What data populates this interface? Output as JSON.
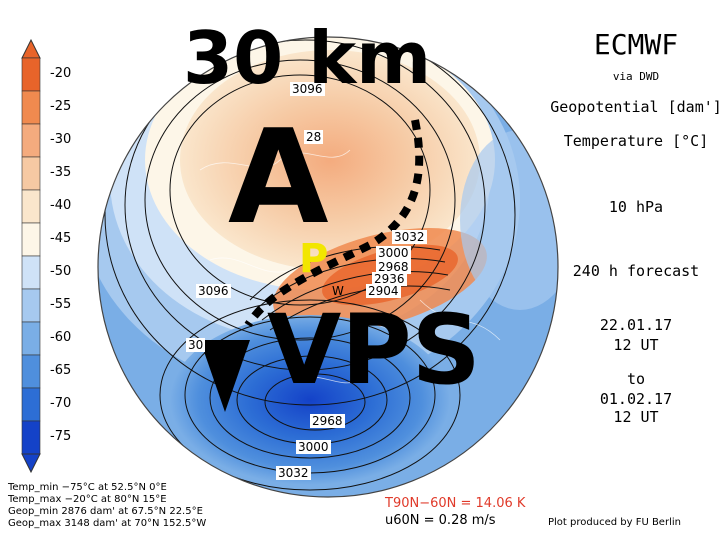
{
  "overlay": {
    "altitude": "30 km",
    "letter_a": "A",
    "letter_p": "P",
    "vps": "VPS"
  },
  "header": {
    "model": "ECMWF",
    "via": "via DWD",
    "field1": "Geopotential [dam']",
    "field2": "Temperature [°C]",
    "level": "10 hPa",
    "forecast": "240 h forecast",
    "init_date": "22.01.17",
    "init_time": "12 UT",
    "to": "to",
    "valid_date": "01.02.17",
    "valid_time": "12 UT"
  },
  "legend": {
    "ticks": [
      "-20",
      "-25",
      "-30",
      "-35",
      "-40",
      "-45",
      "-50",
      "-55",
      "-60",
      "-65",
      "-70",
      "-75"
    ],
    "colors": [
      "#e8642a",
      "#f08a4f",
      "#f4ab7e",
      "#f6c9a3",
      "#fae6cc",
      "#fdf6e8",
      "#cfe2f7",
      "#a6c9ef",
      "#7aaee6",
      "#4f8fdd",
      "#2d6ed5",
      "#1442c8"
    ]
  },
  "contours": {
    "labels": [
      "3096",
      "28",
      "3032",
      "3000",
      "2968",
      "2936",
      "2904",
      "3096",
      "30",
      "2968",
      "3000",
      "3032"
    ],
    "w_marker": "W"
  },
  "footer": {
    "temp_min": "Temp_min −75°C at 52.5°N 0°E",
    "temp_max": "Temp_max −20°C at 80°N 15°E",
    "geop_min": "Geop_min 2876 dam' at 67.5°N 22.5°E",
    "geop_max": "Geop_max 3148 dam' at 70°N 152.5°W",
    "t_diff": "T90N−60N = 14.06 K",
    "u_60n": "u60N = 0.28 m/s",
    "credit": "Plot produced by FU Berlin"
  }
}
